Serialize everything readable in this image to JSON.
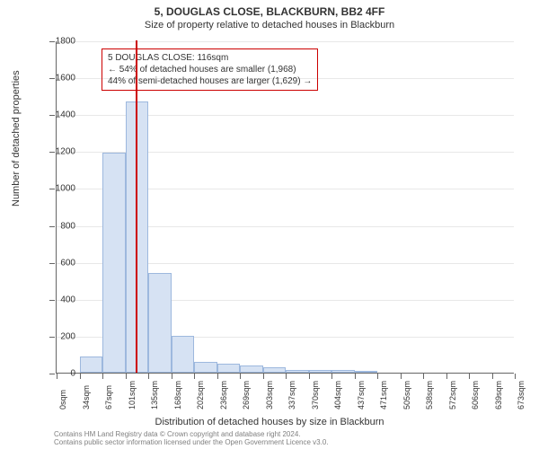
{
  "title": "5, DOUGLAS CLOSE, BLACKBURN, BB2 4FF",
  "subtitle": "Size of property relative to detached houses in Blackburn",
  "y_axis_title": "Number of detached properties",
  "x_axis_title": "Distribution of detached houses by size in Blackburn",
  "annotation": {
    "line1": "5 DOUGLAS CLOSE: 116sqm",
    "line2": "← 54% of detached houses are smaller (1,968)",
    "line3": "44% of semi-detached houses are larger (1,629) →"
  },
  "footer": {
    "line1": "Contains HM Land Registry data © Crown copyright and database right 2024.",
    "line2": "Contains public sector information licensed under the Open Government Licence v3.0."
  },
  "chart": {
    "type": "histogram",
    "ylim": [
      0,
      1800
    ],
    "ytick_step": 200,
    "y_ticks": [
      0,
      200,
      400,
      600,
      800,
      1000,
      1200,
      1400,
      1600,
      1800
    ],
    "x_labels": [
      "0sqm",
      "34sqm",
      "67sqm",
      "101sqm",
      "135sqm",
      "168sqm",
      "202sqm",
      "236sqm",
      "269sqm",
      "303sqm",
      "337sqm",
      "370sqm",
      "404sqm",
      "437sqm",
      "471sqm",
      "505sqm",
      "538sqm",
      "572sqm",
      "606sqm",
      "639sqm",
      "673sqm"
    ],
    "values": [
      0,
      90,
      1190,
      1470,
      540,
      200,
      60,
      50,
      40,
      30,
      15,
      15,
      15,
      5,
      0,
      0,
      0,
      0,
      0,
      0
    ],
    "bar_fill": "#d6e2f3",
    "bar_stroke": "#9db8de",
    "marker_value": 116,
    "marker_x_min": 0,
    "marker_x_max": 673,
    "marker_color": "#cc0000",
    "background_color": "#ffffff",
    "grid_color": "#e0e0e0",
    "axis_color": "#666666",
    "title_fontsize": 12,
    "subtitle_fontsize": 11,
    "axis_label_fontsize": 11,
    "tick_fontsize": 10,
    "annotation_fontsize": 10,
    "footer_fontsize": 8,
    "footer_color": "#808080"
  }
}
